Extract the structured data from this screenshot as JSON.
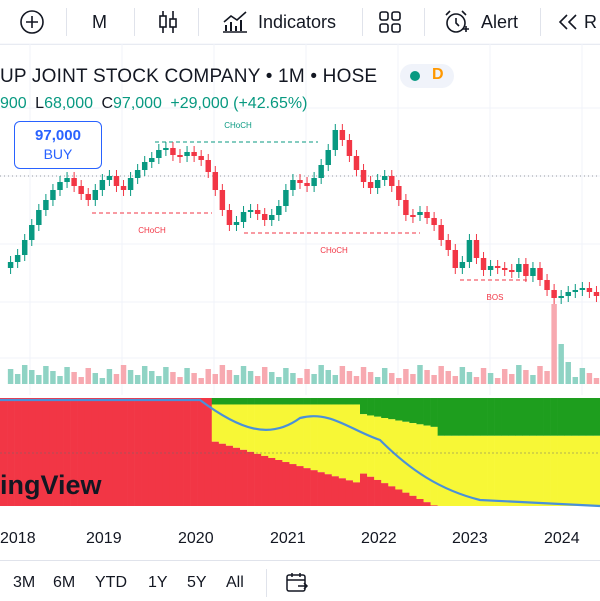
{
  "toolbar": {
    "interval": "M",
    "indicators_label": "Indicators",
    "alert_label": "Alert",
    "replay_partial": "R"
  },
  "symbol": {
    "title": "UP JOINT STOCK COMPANY • 1M • HOSE",
    "status_letter": "D",
    "ohlc": {
      "open_partial": "900",
      "low_label": "L",
      "low": "68,000",
      "close_label": "C",
      "close": "97,000",
      "change": "+29,000 (+42.65%)"
    }
  },
  "buy": {
    "price": "97,000",
    "label": "BUY"
  },
  "markers": {
    "choch_1": "CHoCH",
    "choch_2": "CHoCH",
    "choch_3": "CHoCH",
    "bos": "BOS"
  },
  "watermark": "ingView",
  "xaxis": [
    "2018",
    "2019",
    "2020",
    "2021",
    "2022",
    "2023",
    "2024"
  ],
  "ranges": [
    "3M",
    "6M",
    "YTD",
    "1Y",
    "5Y",
    "All"
  ],
  "colors": {
    "up": "#089981",
    "down": "#f23645",
    "accent": "#2962ff",
    "yellow": "#f7f736",
    "osc_green": "#1e9e1e"
  },
  "chart_data": {
    "type": "candlestick",
    "interval": "1M",
    "x_ticks": [
      "2018",
      "2019",
      "2020",
      "2021",
      "2022",
      "2023",
      "2024"
    ],
    "last_bar": {
      "open_partial": "900",
      "low": 68000,
      "close": 97000,
      "change": 29000,
      "change_pct": 42.65
    },
    "annotations": [
      "CHoCH",
      "CHoCH",
      "CHoCH",
      "BOS"
    ],
    "lower_pane": "stacked oscillator (red / yellow / green) with blue line"
  }
}
